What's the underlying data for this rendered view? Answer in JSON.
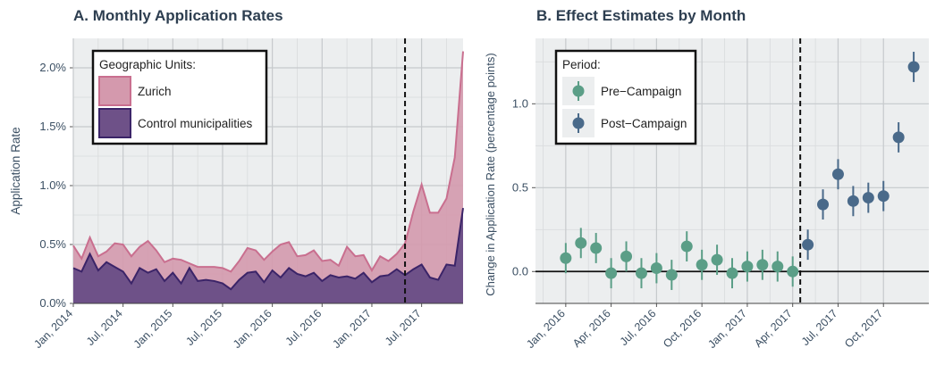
{
  "panels": {
    "a": {
      "title": "A. Monthly Application Rates"
    },
    "b": {
      "title": "B. Effect Estimates by Month"
    }
  },
  "chart_data": [
    {
      "type": "area",
      "title": "A. Monthly Application Rates",
      "xlabel": "",
      "ylabel": "Application Rate",
      "x_ticks": [
        "Jan, 2014",
        "Jul, 2014",
        "Jan, 2015",
        "Jul, 2015",
        "Jan, 2016",
        "Jul, 2016",
        "Jan, 2017",
        "Jul, 2017"
      ],
      "y_ticks": [
        "0.0%",
        "0.5%",
        "1.0%",
        "1.5%",
        "2.0%"
      ],
      "ylim": [
        0,
        2.25
      ],
      "xlim": [
        "2014-01",
        "2017-12"
      ],
      "campaign_line_x": "2017-05",
      "legend": {
        "title": "Geographic Units:",
        "position": "top-left"
      },
      "x": [
        "2014-01",
        "2014-02",
        "2014-03",
        "2014-04",
        "2014-05",
        "2014-06",
        "2014-07",
        "2014-08",
        "2014-09",
        "2014-10",
        "2014-11",
        "2014-12",
        "2015-01",
        "2015-02",
        "2015-03",
        "2015-04",
        "2015-05",
        "2015-06",
        "2015-07",
        "2015-08",
        "2015-09",
        "2015-10",
        "2015-11",
        "2015-12",
        "2016-01",
        "2016-02",
        "2016-03",
        "2016-04",
        "2016-05",
        "2016-06",
        "2016-07",
        "2016-08",
        "2016-09",
        "2016-10",
        "2016-11",
        "2016-12",
        "2017-01",
        "2017-02",
        "2017-03",
        "2017-04",
        "2017-05",
        "2017-06",
        "2017-07",
        "2017-08",
        "2017-09",
        "2017-10",
        "2017-11",
        "2017-12"
      ],
      "series": [
        {
          "name": "Zurich",
          "color": "#c96f8f",
          "fill": "#d499ad",
          "values": [
            0.49,
            0.38,
            0.56,
            0.4,
            0.44,
            0.51,
            0.5,
            0.4,
            0.48,
            0.53,
            0.45,
            0.35,
            0.38,
            0.37,
            0.34,
            0.31,
            0.31,
            0.31,
            0.3,
            0.27,
            0.36,
            0.47,
            0.45,
            0.37,
            0.44,
            0.5,
            0.52,
            0.4,
            0.41,
            0.45,
            0.36,
            0.37,
            0.32,
            0.48,
            0.4,
            0.41,
            0.28,
            0.4,
            0.36,
            0.42,
            0.51,
            0.78,
            1.01,
            0.77,
            0.77,
            0.89,
            1.24,
            2.14
          ]
        },
        {
          "name": "Control municipalities",
          "color": "#3b2468",
          "fill": "#6e5188",
          "values": [
            0.3,
            0.27,
            0.42,
            0.28,
            0.35,
            0.31,
            0.27,
            0.17,
            0.3,
            0.26,
            0.29,
            0.19,
            0.26,
            0.17,
            0.3,
            0.19,
            0.2,
            0.19,
            0.17,
            0.12,
            0.2,
            0.26,
            0.27,
            0.18,
            0.28,
            0.22,
            0.3,
            0.25,
            0.23,
            0.26,
            0.19,
            0.24,
            0.22,
            0.23,
            0.21,
            0.26,
            0.18,
            0.23,
            0.24,
            0.29,
            0.24,
            0.29,
            0.33,
            0.22,
            0.2,
            0.33,
            0.32,
            0.81
          ]
        }
      ]
    },
    {
      "type": "scatter",
      "title": "B. Effect Estimates by Month",
      "xlabel": "",
      "ylabel": "Change in Application Rate (percentage points)",
      "x_ticks": [
        "Jan, 2016",
        "Apr, 2016",
        "Jul, 2016",
        "Oct, 2016",
        "Jan, 2017",
        "Apr, 2017",
        "Jul, 2017",
        "Oct, 2017"
      ],
      "y_ticks": [
        "0.0",
        "0.5",
        "1.0"
      ],
      "ylim": [
        -0.19,
        1.39
      ],
      "xlim": [
        "2015-11",
        "2018-01"
      ],
      "campaign_line_x": "2017-05",
      "legend": {
        "title": "Period:",
        "position": "top-left"
      },
      "series": [
        {
          "name": "Pre−Campaign",
          "color": "#5b9e87",
          "x": [
            "2016-01",
            "2016-02",
            "2016-03",
            "2016-04",
            "2016-05",
            "2016-06",
            "2016-07",
            "2016-08",
            "2016-09",
            "2016-10",
            "2016-11",
            "2016-12",
            "2017-01",
            "2017-02",
            "2017-03",
            "2017-04"
          ],
          "values": [
            0.08,
            0.17,
            0.14,
            -0.01,
            0.09,
            -0.01,
            0.02,
            -0.02,
            0.15,
            0.04,
            0.07,
            -0.01,
            0.03,
            0.04,
            0.03,
            0.0
          ],
          "ci_half": [
            0.09,
            0.09,
            0.09,
            0.09,
            0.09,
            0.09,
            0.09,
            0.09,
            0.09,
            0.09,
            0.09,
            0.09,
            0.09,
            0.09,
            0.09,
            0.09
          ]
        },
        {
          "name": "Post−Campaign",
          "color": "#4a6a8a",
          "x": [
            "2017-05",
            "2017-06",
            "2017-07",
            "2017-08",
            "2017-09",
            "2017-10",
            "2017-11",
            "2017-12"
          ],
          "values": [
            0.16,
            0.4,
            0.58,
            0.42,
            0.44,
            0.45,
            0.8,
            1.22
          ],
          "ci_half": [
            0.09,
            0.09,
            0.09,
            0.09,
            0.09,
            0.09,
            0.09,
            0.09
          ]
        }
      ]
    }
  ]
}
